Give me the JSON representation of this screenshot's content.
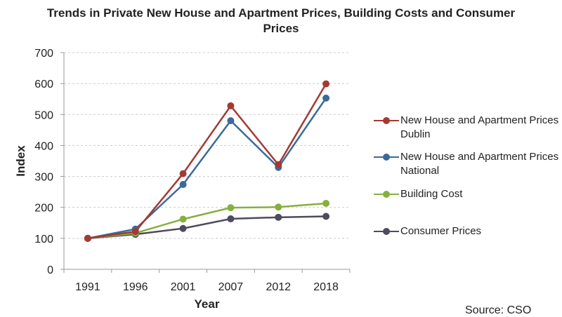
{
  "chart_data": {
    "type": "line",
    "title": "Trends in Private New House and Apartment Prices, Building Costs and Consumer Prices",
    "xlabel": "Year",
    "ylabel": "Index",
    "categories": [
      "1991",
      "1996",
      "2001",
      "2007",
      "2012",
      "2018"
    ],
    "ylim": [
      0,
      700
    ],
    "yticks": [
      0,
      100,
      200,
      300,
      400,
      500,
      600,
      700
    ],
    "grid": "horizontal dashed",
    "legend": "right",
    "series": [
      {
        "name": "New House and Apartment Prices Dublin",
        "color": "#a33a32",
        "values": [
          100,
          122,
          309,
          528,
          338,
          599
        ]
      },
      {
        "name": "New House and Apartment Prices National",
        "color": "#3a6a9b",
        "values": [
          100,
          130,
          274,
          480,
          329,
          553
        ]
      },
      {
        "name": "Building Cost",
        "color": "#86b03e",
        "values": [
          100,
          117,
          162,
          199,
          201,
          213
        ]
      },
      {
        "name": "Consumer Prices",
        "color": "#4f4a5e",
        "values": [
          100,
          113,
          132,
          163,
          168,
          171
        ]
      }
    ],
    "source": "Source: CSO"
  }
}
